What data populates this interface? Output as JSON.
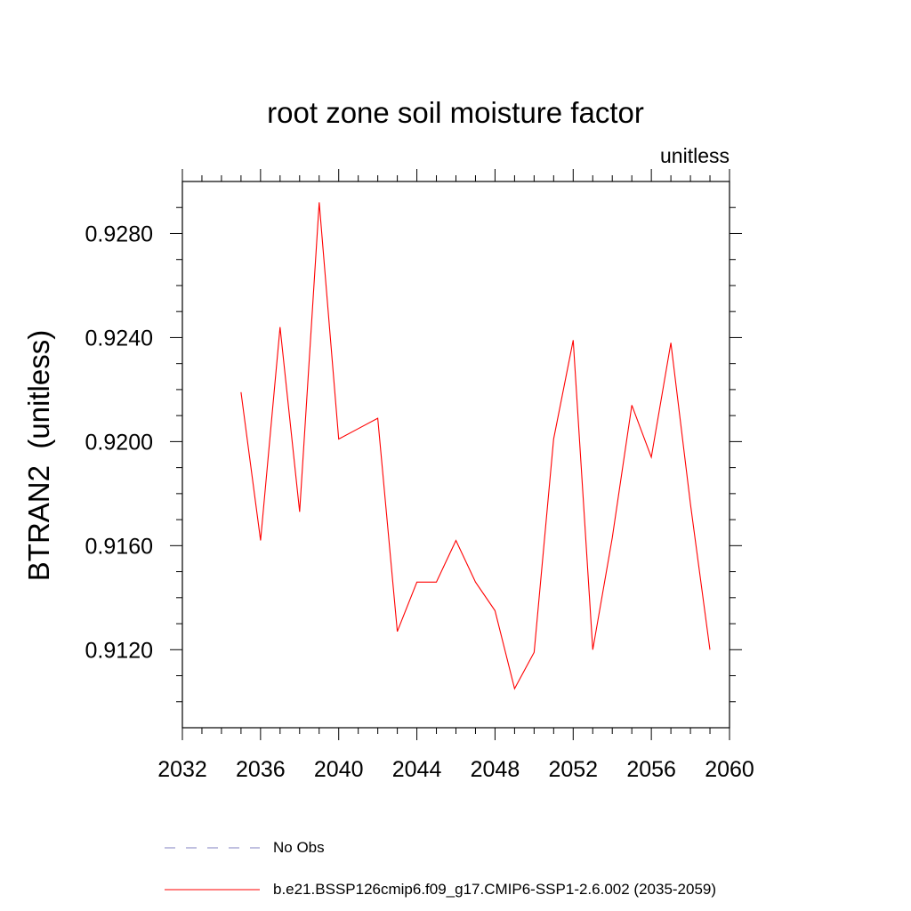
{
  "chart_data": {
    "type": "line",
    "title": "root zone soil moisture factor",
    "units_label": "unitless",
    "ylabel": "BTRAN2  (unitless)",
    "xlabel": "",
    "xlim": [
      2032,
      2060
    ],
    "ylim": [
      0.909,
      0.93
    ],
    "x_ticks": [
      "2032",
      "2036",
      "2040",
      "2044",
      "2048",
      "2052",
      "2056",
      "2060"
    ],
    "y_ticks": [
      "0.9120",
      "0.9160",
      "0.9200",
      "0.9240",
      "0.9280"
    ],
    "series": [
      {
        "name": "b.e21.BSSP126cmip6.f09_g17.CMIP6-SSP1-2.6.002 (2035-2059)",
        "color": "#ff0000",
        "style": "solid",
        "x": [
          2035,
          2036,
          2037,
          2038,
          2039,
          2040,
          2041,
          2042,
          2043,
          2044,
          2045,
          2046,
          2047,
          2048,
          2049,
          2050,
          2051,
          2052,
          2053,
          2054,
          2055,
          2056,
          2057,
          2058,
          2059
        ],
        "values": [
          0.9219,
          0.9162,
          0.9244,
          0.9173,
          0.9292,
          0.9201,
          0.9205,
          0.9209,
          0.9127,
          0.9146,
          0.9146,
          0.9162,
          0.9146,
          0.9135,
          0.9105,
          0.9119,
          0.9201,
          0.9239,
          0.912,
          0.9163,
          0.9214,
          0.9194,
          0.9238,
          0.9176,
          0.912
        ]
      }
    ],
    "legend": [
      {
        "label": "No Obs",
        "color": "#8080c0",
        "style": "dashed"
      },
      {
        "label": "b.e21.BSSP126cmip6.f09_g17.CMIP6-SSP1-2.6.002 (2035-2059)",
        "color": "#ff0000",
        "style": "solid"
      }
    ]
  }
}
